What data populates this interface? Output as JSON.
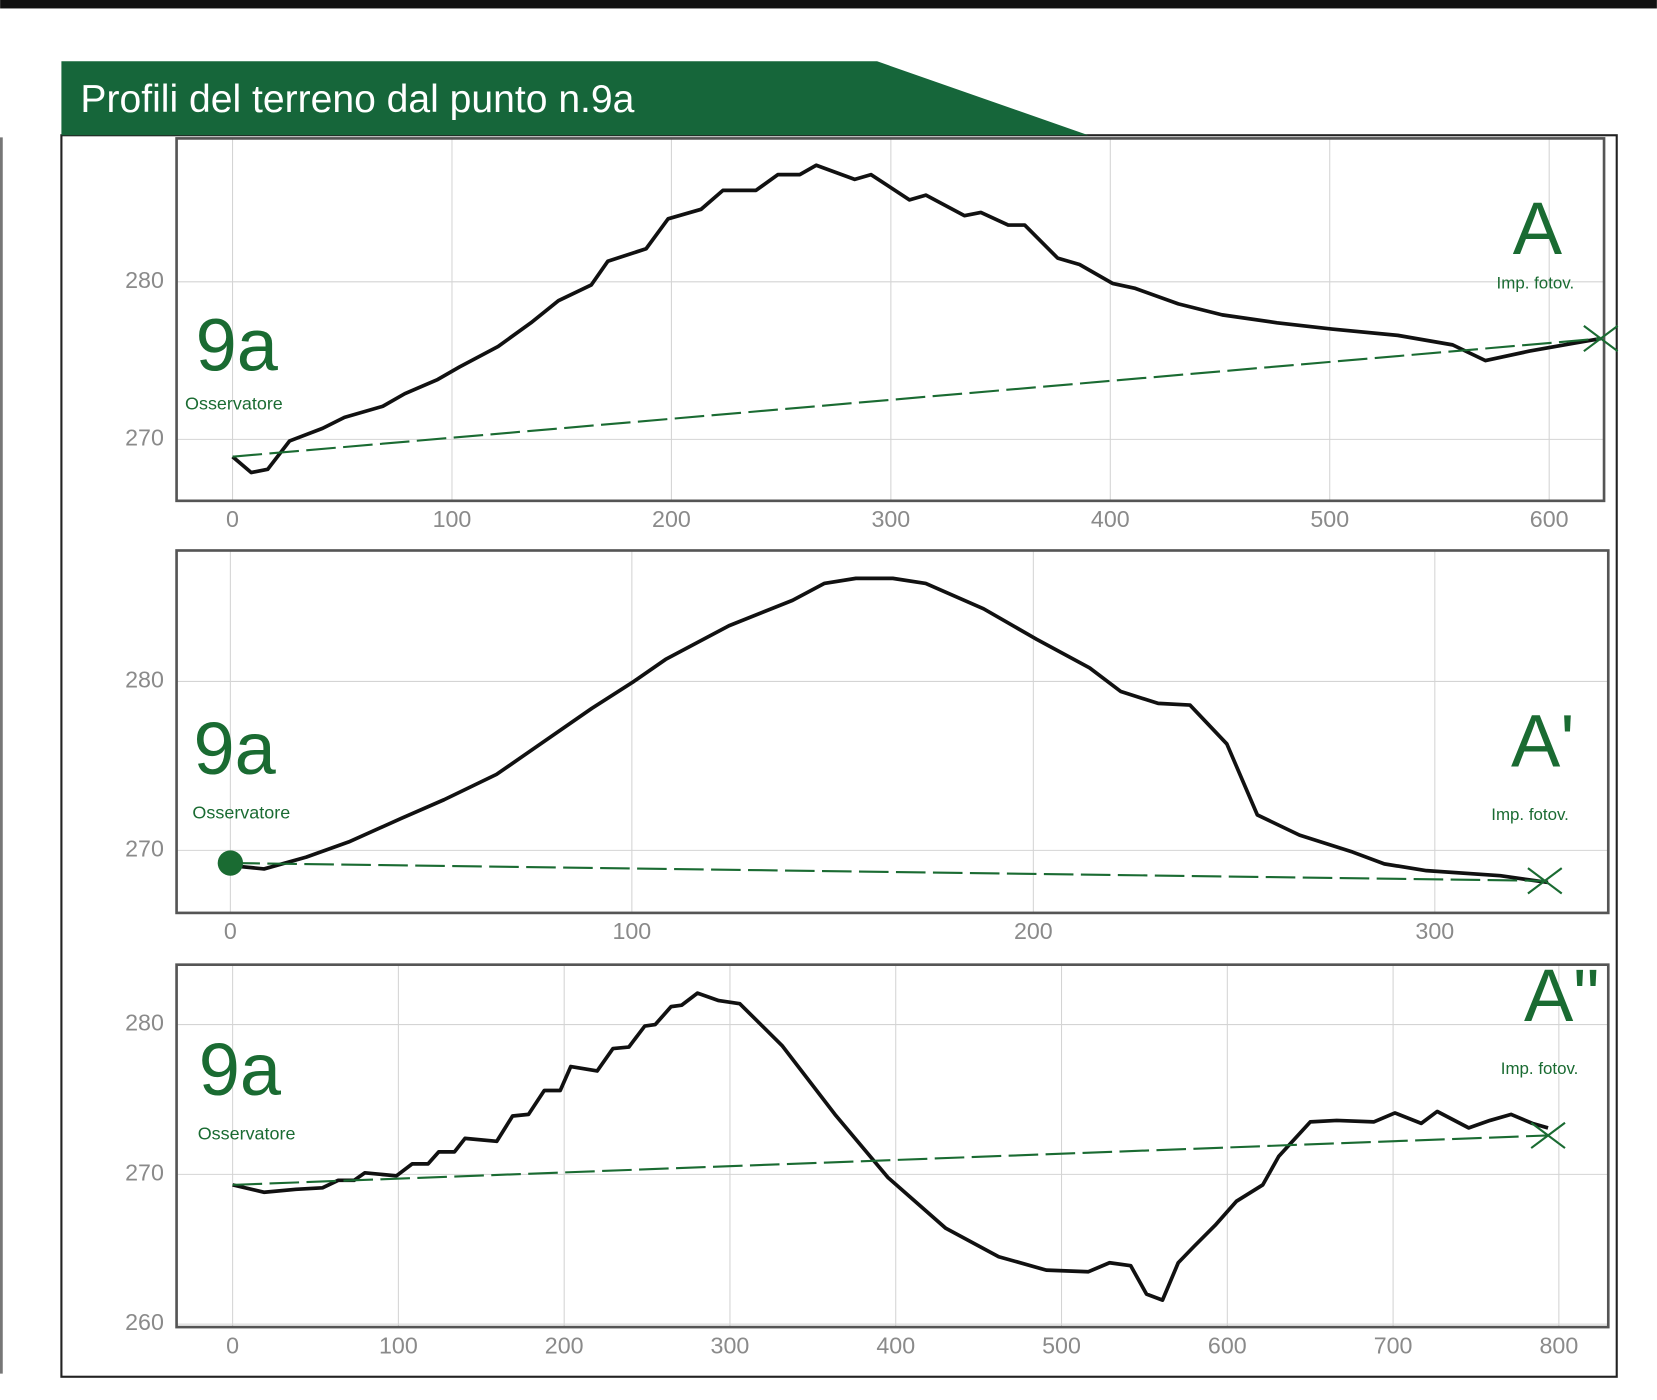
{
  "header": {
    "title": "Profili del terreno dal punto n.9a"
  },
  "chart_data": [
    {
      "type": "line",
      "xlim": [
        -25.5,
        625
      ],
      "ylim": [
        266.1,
        289.1
      ],
      "xticks": [
        0,
        100,
        200,
        300,
        400,
        500,
        600
      ],
      "yticks": [
        270,
        280
      ],
      "grid": true,
      "annotations": [
        {
          "text": "9a"
        },
        {
          "text": "Osservatore"
        },
        {
          "text": "A"
        },
        {
          "text": "Imp. fotov."
        }
      ],
      "series": [
        {
          "color": "#111111",
          "x": [
            0,
            8.5,
            16,
            26,
            41,
            51,
            68.5,
            78.5,
            93.5,
            103.5,
            121,
            136,
            148.5,
            163.5,
            171,
            188.5,
            198.5,
            213.5,
            223.5,
            238.5,
            248.5,
            258.5,
            266,
            283.5,
            291,
            308.5,
            316,
            333.5,
            341,
            353.5,
            361,
            376,
            386,
            401,
            411,
            431,
            451,
            476,
            501,
            531,
            556,
            571,
            591,
            611,
            623.5
          ],
          "values": [
            268.9,
            267.9,
            268.1,
            269.9,
            270.7,
            271.4,
            272.1,
            272.9,
            273.8,
            274.6,
            275.9,
            277.4,
            278.8,
            279.8,
            281.3,
            282.1,
            284.0,
            284.6,
            285.8,
            285.8,
            286.8,
            286.8,
            287.4,
            286.5,
            286.8,
            285.2,
            285.5,
            284.2,
            284.4,
            283.6,
            283.6,
            281.5,
            281.1,
            279.9,
            279.6,
            278.6,
            277.9,
            277.4,
            277.0,
            276.6,
            276.0,
            275.0,
            275.6,
            276.1,
            276.4
          ]
        },
        {
          "color": "#1a6b32",
          "dashed": true,
          "x": [
            0,
            623.5
          ],
          "values": [
            268.9,
            276.4
          ]
        }
      ]
    },
    {
      "type": "line",
      "xlim": [
        -13.4,
        343.2
      ],
      "ylim": [
        266.3,
        287.75
      ],
      "xticks": [
        0,
        100,
        200,
        300
      ],
      "yticks": [
        270,
        280
      ],
      "grid": true,
      "annotations": [
        {
          "text": "9a"
        },
        {
          "text": "Osservatore"
        },
        {
          "text": "A'"
        },
        {
          "text": "Imp. fotov."
        }
      ],
      "series": [
        {
          "color": "#111111",
          "x": [
            0,
            8.4,
            18.9,
            29.5,
            42.6,
            53.2,
            66.3,
            74.2,
            90,
            100.5,
            108.4,
            124.2,
            140,
            147.9,
            155.8,
            165,
            173.2,
            187.6,
            200.8,
            214,
            221.8,
            231.1,
            239,
            248.2,
            255.8,
            266.3,
            279.5,
            287.4,
            297.9,
            316.3,
            328.2
          ],
          "values": [
            269.1,
            268.9,
            269.6,
            270.5,
            271.9,
            273.0,
            274.5,
            275.8,
            278.4,
            280.0,
            281.3,
            283.3,
            284.8,
            285.8,
            286.1,
            286.1,
            285.8,
            284.3,
            282.5,
            280.8,
            279.4,
            278.7,
            278.6,
            276.3,
            272.1,
            270.9,
            269.9,
            269.2,
            268.8,
            268.5,
            268.1
          ]
        },
        {
          "color": "#1a6b32",
          "dashed": true,
          "start_marker": "circle",
          "x": [
            0,
            327.4
          ],
          "values": [
            269.25,
            268.2
          ]
        }
      ]
    },
    {
      "type": "line",
      "xlim": [
        -33.8,
        829.8
      ],
      "ylim": [
        259.8,
        284.0
      ],
      "xticks": [
        0,
        100,
        200,
        300,
        400,
        500,
        600,
        700,
        800
      ],
      "yticks": [
        260,
        270,
        280
      ],
      "grid": true,
      "annotations": [
        {
          "text": "9a"
        },
        {
          "text": "Osservatore"
        },
        {
          "text": "A\""
        },
        {
          "text": "Imp. fotov."
        }
      ],
      "series": [
        {
          "color": "#111111",
          "x": [
            0,
            19.1,
            38.2,
            54.2,
            63.7,
            73.3,
            79.7,
            98.8,
            108.3,
            117.9,
            124.3,
            133.8,
            140.2,
            159.3,
            168.9,
            178.5,
            188,
            197.6,
            204,
            219.9,
            229.4,
            239,
            248.6,
            254.9,
            264.5,
            270.9,
            280.4,
            293.2,
            305.9,
            331.4,
            363.3,
            395.2,
            430.2,
            462.1,
            490.8,
            516.2,
            529,
            541.7,
            551.3,
            560.9,
            570.4,
            580,
            592.7,
            605.5,
            621.4,
            631,
            650.1,
            666,
            688.3,
            701.1,
            717,
            726.6,
            745.7,
            758.5,
            771.2,
            784,
            793.5
          ],
          "values": [
            269.3,
            268.8,
            269.0,
            269.1,
            269.6,
            269.6,
            270.1,
            269.9,
            270.7,
            270.7,
            271.5,
            271.5,
            272.4,
            272.2,
            273.9,
            274.0,
            275.6,
            275.6,
            277.2,
            276.9,
            278.4,
            278.5,
            279.9,
            280.0,
            281.2,
            281.3,
            282.1,
            281.6,
            281.4,
            278.6,
            274.0,
            269.8,
            266.4,
            264.5,
            263.6,
            263.5,
            264.1,
            263.9,
            262.0,
            261.6,
            264.1,
            265.2,
            266.6,
            268.2,
            269.3,
            271.2,
            273.5,
            273.6,
            273.5,
            274.1,
            273.4,
            274.2,
            273.1,
            273.6,
            274.0,
            273.4,
            273.1
          ]
        },
        {
          "color": "#1a6b32",
          "dashed": true,
          "x": [
            0,
            793.5
          ],
          "values": [
            269.3,
            272.6
          ]
        }
      ]
    }
  ]
}
